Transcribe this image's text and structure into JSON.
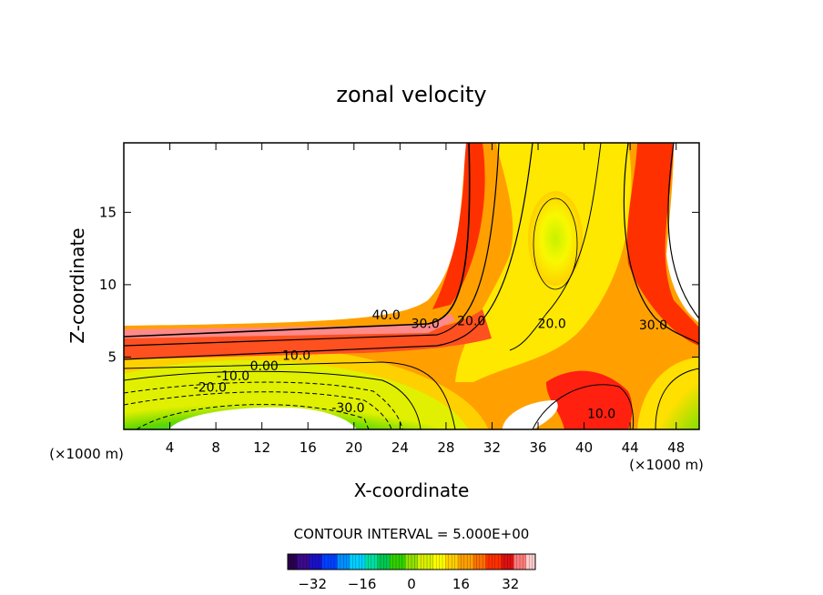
{
  "chart_data": {
    "type": "contour",
    "title": "zonal velocity",
    "xlabel": "X-coordinate",
    "ylabel": "Z-coordinate",
    "x_unit": "(×1000 m)",
    "y_unit": "(×1000 m)",
    "xlim": [
      0,
      50
    ],
    "ylim": [
      0,
      19.8
    ],
    "xticks": [
      4,
      8,
      12,
      16,
      20,
      24,
      28,
      32,
      36,
      40,
      44,
      48
    ],
    "yticks": [
      5,
      10,
      15
    ],
    "contour_interval_text": "CONTOUR INTERVAL = 5.000E+00",
    "contour_labels": [
      {
        "text": "40.0",
        "x": 22.8,
        "z": 7.6
      },
      {
        "text": "30.0",
        "x": 26.2,
        "z": 7.0
      },
      {
        "text": "20.0",
        "x": 30.2,
        "z": 7.2
      },
      {
        "text": "20.0",
        "x": 37.2,
        "z": 7.0
      },
      {
        "text": "30.0",
        "x": 46.0,
        "z": 6.9
      },
      {
        "text": "10.0",
        "x": 15.0,
        "z": 4.8
      },
      {
        "text": "0.00",
        "x": 12.2,
        "z": 4.1
      },
      {
        "text": "-10.0",
        "x": 9.5,
        "z": 3.4
      },
      {
        "text": "-20.0",
        "x": 7.5,
        "z": 2.6
      },
      {
        "text": "-30.0",
        "x": 19.5,
        "z": 1.2
      },
      {
        "text": "10.0",
        "x": 41.5,
        "z": 0.8
      }
    ],
    "colorbar": {
      "range": [
        -40,
        40
      ],
      "ticks": [
        -32,
        -16,
        0,
        16,
        32
      ],
      "colors": [
        "#2a0050",
        "#3a0a8c",
        "#1a10c8",
        "#0040ff",
        "#0090ff",
        "#00d0ff",
        "#00e0a0",
        "#00c850",
        "#30d000",
        "#90e000",
        "#d8f000",
        "#ffff00",
        "#ffd000",
        "#ffa000",
        "#ff7000",
        "#ff3000",
        "#e01010",
        "#ff7a7a",
        "#ffcccc"
      ]
    }
  }
}
